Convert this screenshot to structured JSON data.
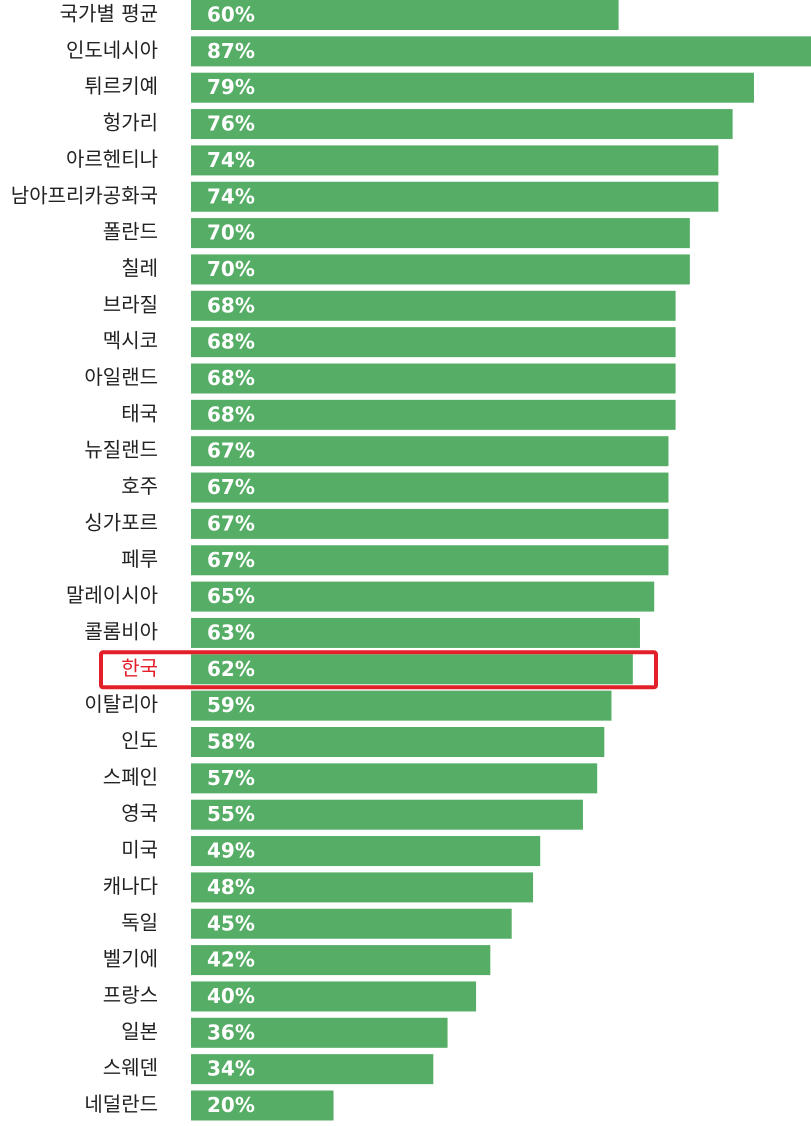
{
  "chart_data": {
    "type": "hbar",
    "categories": [
      "국가별 평균",
      "인도네시아",
      "튀르키예",
      "헝가리",
      "아르헨티나",
      "남아프리카공화국",
      "폴란드",
      "칠레",
      "브라질",
      "멕시코",
      "아일랜드",
      "태국",
      "뉴질랜드",
      "호주",
      "싱가포르",
      "페루",
      "말레이시아",
      "콜롬비아",
      "한국",
      "이탈리아",
      "인도",
      "스페인",
      "영국",
      "미국",
      "캐나다",
      "독일",
      "벨기에",
      "프랑스",
      "일본",
      "스웨덴",
      "네덜란드"
    ],
    "values": [
      60,
      87,
      79,
      76,
      74,
      74,
      70,
      70,
      68,
      68,
      68,
      68,
      67,
      67,
      67,
      67,
      65,
      63,
      62,
      59,
      58,
      57,
      55,
      49,
      48,
      45,
      42,
      40,
      36,
      34,
      20
    ],
    "value_labels": [
      "60%",
      "87%",
      "79%",
      "76%",
      "74%",
      "74%",
      "70%",
      "70%",
      "68%",
      "68%",
      "68%",
      "68%",
      "67%",
      "67%",
      "67%",
      "67%",
      "65%",
      "63%",
      "62%",
      "59%",
      "58%",
      "57%",
      "55%",
      "49%",
      "48%",
      "45%",
      "42%",
      "40%",
      "36%",
      "34%",
      "20%"
    ],
    "color": "#55ad66",
    "highlight": 18,
    "highlight_color": "#e3202a"
  }
}
